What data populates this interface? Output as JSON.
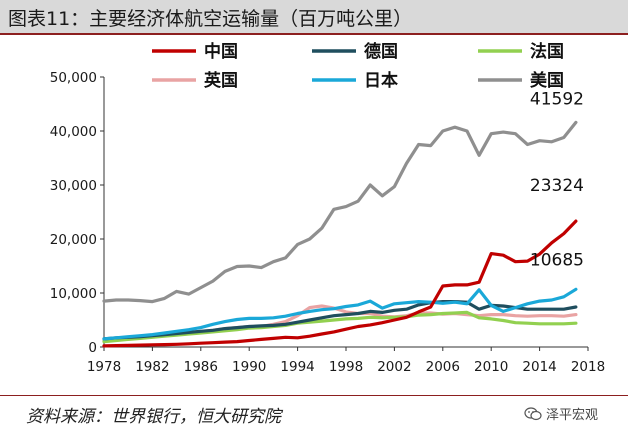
{
  "page": {
    "title": "图表11：主要经济体航空运输量（百万吨公里）",
    "source": "资料来源：世界银行，恒大研究院",
    "watermark": "泽平宏观",
    "watermark_icon": "wechat-icon"
  },
  "chart_data": {
    "type": "line",
    "title": "",
    "xlabel": "",
    "ylabel": "",
    "xlim": [
      1978,
      2018
    ],
    "ylim": [
      0,
      50000
    ],
    "x_ticks": [
      "1978",
      "1982",
      "1986",
      "1990",
      "1994",
      "1998",
      "2002",
      "2006",
      "2010",
      "2014",
      "2018"
    ],
    "y_ticks": [
      "0",
      "10,000",
      "20,000",
      "30,000",
      "40,000",
      "50,000"
    ],
    "grid": false,
    "legend_position": "top",
    "x": [
      1978,
      1979,
      1980,
      1981,
      1982,
      1983,
      1984,
      1985,
      1986,
      1987,
      1988,
      1989,
      1990,
      1991,
      1992,
      1993,
      1994,
      1995,
      1996,
      1997,
      1998,
      1999,
      2000,
      2001,
      2002,
      2003,
      2004,
      2005,
      2006,
      2007,
      2008,
      2009,
      2010,
      2011,
      2012,
      2013,
      2014,
      2015,
      2016,
      2017
    ],
    "series": [
      {
        "name": "中国",
        "color": "#c00000",
        "values": [
          200,
          250,
          300,
          350,
          400,
          450,
          500,
          600,
          700,
          800,
          900,
          1000,
          1200,
          1400,
          1600,
          1800,
          1700,
          2000,
          2400,
          2800,
          3300,
          3800,
          4100,
          4500,
          5000,
          5500,
          6500,
          7400,
          11300,
          11500,
          11500,
          12000,
          17300,
          17000,
          15800,
          15900,
          17200,
          19300,
          21000,
          23324
        ]
      },
      {
        "name": "德国",
        "color": "#1f4e5e",
        "values": [
          1500,
          1700,
          1800,
          1900,
          2100,
          2300,
          2500,
          2700,
          2900,
          3100,
          3400,
          3600,
          3800,
          3900,
          4000,
          4200,
          4600,
          5000,
          5400,
          5800,
          6000,
          6200,
          6600,
          6400,
          6800,
          7000,
          7800,
          8200,
          8400,
          8400,
          8300,
          7000,
          7700,
          7600,
          7300,
          7000,
          7000,
          7000,
          7000,
          7400
        ]
      },
      {
        "name": "法国",
        "color": "#92d050",
        "values": [
          1000,
          1200,
          1400,
          1600,
          1800,
          2000,
          2200,
          2400,
          2600,
          2800,
          3000,
          3200,
          3500,
          3600,
          3800,
          4000,
          4400,
          4600,
          4800,
          5000,
          5200,
          5300,
          5500,
          5400,
          5500,
          5600,
          5900,
          6000,
          6200,
          6300,
          6400,
          5400,
          5200,
          4900,
          4500,
          4400,
          4300,
          4300,
          4300,
          4400
        ]
      },
      {
        "name": "英国",
        "color": "#e9a3a3",
        "values": [
          1200,
          1400,
          1600,
          1800,
          2000,
          2200,
          2500,
          2700,
          2900,
          3100,
          3400,
          3600,
          3800,
          3800,
          4200,
          4700,
          5800,
          7300,
          7600,
          7200,
          6500,
          6200,
          6200,
          5700,
          5600,
          5800,
          6300,
          6300,
          6100,
          6200,
          6000,
          5800,
          6000,
          6000,
          5800,
          5700,
          5800,
          5800,
          5700,
          6000
        ]
      },
      {
        "name": "日本",
        "color": "#1aa8d8",
        "values": [
          1500,
          1700,
          1900,
          2100,
          2300,
          2600,
          2900,
          3200,
          3600,
          4200,
          4700,
          5100,
          5300,
          5300,
          5400,
          5700,
          6200,
          6600,
          6900,
          7100,
          7500,
          7800,
          8500,
          7200,
          8000,
          8200,
          8400,
          8300,
          8100,
          8300,
          8000,
          10600,
          7700,
          6600,
          7300,
          8000,
          8500,
          8700,
          9300,
          10685
        ]
      },
      {
        "name": "美国",
        "color": "#8f8f8f",
        "values": [
          8500,
          8700,
          8700,
          8600,
          8400,
          9000,
          10300,
          9800,
          11000,
          12200,
          14000,
          14900,
          15000,
          14700,
          15800,
          16500,
          19000,
          20000,
          22000,
          25500,
          26000,
          27000,
          30000,
          28000,
          29700,
          34000,
          37500,
          37300,
          40000,
          40700,
          40000,
          35500,
          39500,
          39800,
          39500,
          37500,
          38200,
          38000,
          38800,
          41592
        ]
      }
    ],
    "annotations": [
      {
        "text": "41592",
        "series": "美国"
      },
      {
        "text": "23324",
        "series": "中国"
      },
      {
        "text": "10685",
        "series": "日本"
      }
    ]
  }
}
